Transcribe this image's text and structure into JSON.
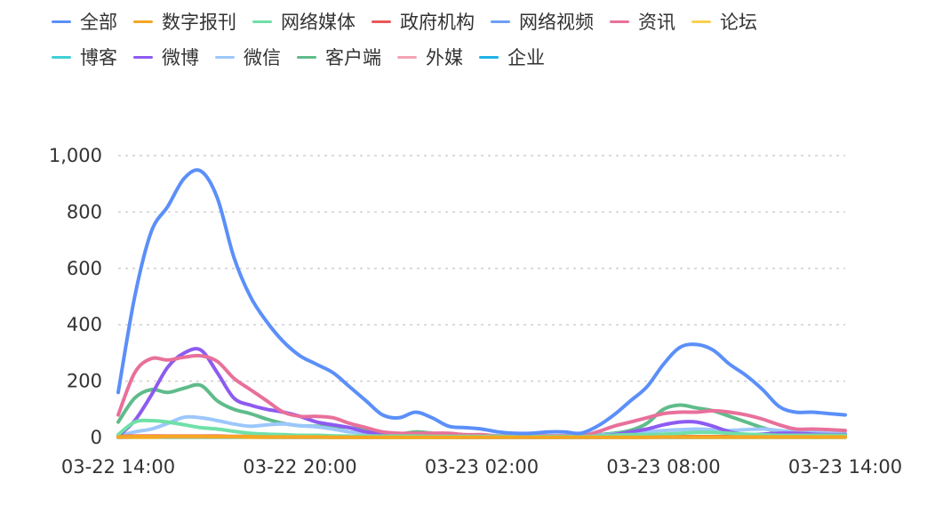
{
  "chart_data": {
    "type": "line",
    "x_labels": [
      "03-22 14:00",
      "03-22 20:00",
      "03-23 02:00",
      "03-23 08:00",
      "03-23 14:00"
    ],
    "y_ticks": [
      "0",
      "200",
      "400",
      "600",
      "800",
      "1,000"
    ],
    "ylim": [
      0,
      1000
    ],
    "grid": "horizontal dotted",
    "legend_position": "top",
    "series": [
      {
        "name": "全部",
        "color": "#5b8ff9",
        "values": [
          160,
          500,
          730,
          820,
          920,
          945,
          850,
          640,
          500,
          410,
          340,
          290,
          260,
          230,
          180,
          130,
          80,
          70,
          90,
          70,
          40,
          35,
          30,
          20,
          15,
          15,
          20,
          20,
          15,
          40,
          80,
          130,
          180,
          260,
          320,
          330,
          310,
          260,
          220,
          170,
          110,
          90,
          90,
          85,
          80
        ]
      },
      {
        "name": "数字报刊",
        "color": "#f6a623",
        "values": [
          2,
          3,
          3,
          4,
          4,
          4,
          3,
          3,
          3,
          2,
          2,
          2,
          2,
          1,
          1,
          1,
          1,
          1,
          1,
          1,
          1,
          1,
          1,
          1,
          1,
          1,
          1,
          1,
          1,
          1,
          1,
          1,
          1,
          2,
          2,
          2,
          2,
          2,
          2,
          2,
          2,
          2,
          2,
          2,
          2
        ]
      },
      {
        "name": "网络媒体",
        "color": "#6fe0a8",
        "values": [
          10,
          55,
          60,
          55,
          45,
          35,
          30,
          22,
          15,
          12,
          10,
          8,
          8,
          6,
          5,
          5,
          5,
          5,
          5,
          4,
          4,
          4,
          4,
          4,
          3,
          3,
          3,
          3,
          3,
          5,
          8,
          10,
          10,
          12,
          15,
          18,
          18,
          15,
          12,
          10,
          8,
          8,
          8,
          8,
          8
        ]
      },
      {
        "name": "政府机构",
        "color": "#e8575a",
        "values": [
          3,
          5,
          5,
          5,
          5,
          5,
          5,
          4,
          4,
          4,
          4,
          3,
          3,
          3,
          3,
          3,
          3,
          3,
          2,
          2,
          2,
          2,
          2,
          2,
          2,
          2,
          2,
          2,
          2,
          2,
          2,
          2,
          3,
          3,
          3,
          3,
          3,
          3,
          3,
          3,
          3,
          3,
          3,
          3,
          3
        ]
      },
      {
        "name": "网络视频",
        "color": "#6b9ff5",
        "values": [
          2,
          3,
          3,
          4,
          4,
          4,
          3,
          3,
          3,
          3,
          2,
          2,
          2,
          2,
          2,
          2,
          2,
          2,
          2,
          2,
          2,
          1,
          1,
          1,
          1,
          1,
          1,
          1,
          1,
          1,
          2,
          2,
          2,
          2,
          2,
          3,
          3,
          3,
          3,
          3,
          3,
          3,
          3,
          3,
          3
        ]
      },
      {
        "name": "资讯",
        "color": "#e8709b",
        "values": [
          80,
          230,
          280,
          275,
          285,
          290,
          270,
          210,
          170,
          130,
          90,
          75,
          75,
          70,
          50,
          35,
          20,
          15,
          15,
          15,
          15,
          10,
          10,
          5,
          5,
          5,
          5,
          5,
          5,
          20,
          40,
          55,
          70,
          85,
          90,
          90,
          95,
          90,
          80,
          65,
          45,
          30,
          30,
          28,
          25
        ]
      },
      {
        "name": "论坛",
        "color": "#f8d050",
        "values": [
          1,
          1,
          1,
          2,
          2,
          2,
          2,
          2,
          1,
          1,
          1,
          1,
          1,
          1,
          1,
          1,
          1,
          1,
          1,
          1,
          1,
          1,
          1,
          1,
          1,
          1,
          1,
          1,
          1,
          1,
          1,
          1,
          1,
          1,
          1,
          1,
          1,
          1,
          1,
          1,
          1,
          1,
          1,
          1,
          1
        ]
      },
      {
        "name": "博客",
        "color": "#3fd0d6",
        "values": [
          1,
          2,
          2,
          2,
          2,
          2,
          2,
          2,
          2,
          1,
          1,
          1,
          1,
          1,
          1,
          1,
          1,
          1,
          1,
          1,
          1,
          1,
          1,
          1,
          1,
          1,
          1,
          1,
          1,
          1,
          1,
          1,
          1,
          1,
          1,
          1,
          1,
          1,
          1,
          1,
          1,
          1,
          1,
          1,
          1
        ]
      },
      {
        "name": "微博",
        "color": "#8d5bf0",
        "values": [
          5,
          60,
          150,
          250,
          300,
          310,
          230,
          140,
          115,
          100,
          90,
          75,
          55,
          45,
          35,
          20,
          15,
          10,
          10,
          8,
          5,
          5,
          5,
          3,
          3,
          3,
          3,
          3,
          3,
          5,
          10,
          20,
          30,
          45,
          55,
          55,
          40,
          20,
          10,
          12,
          15,
          15,
          12,
          10,
          10
        ]
      },
      {
        "name": "微信",
        "color": "#9cc7fb",
        "values": [
          5,
          20,
          30,
          50,
          72,
          70,
          60,
          48,
          40,
          45,
          48,
          42,
          38,
          30,
          20,
          15,
          12,
          10,
          10,
          10,
          10,
          8,
          8,
          6,
          6,
          6,
          6,
          6,
          6,
          8,
          12,
          18,
          20,
          25,
          28,
          30,
          28,
          25,
          28,
          30,
          25,
          20,
          18,
          15,
          15
        ]
      },
      {
        "name": "客户端",
        "color": "#5fbc8a",
        "values": [
          55,
          140,
          170,
          160,
          175,
          185,
          130,
          100,
          85,
          65,
          50,
          42,
          40,
          38,
          35,
          25,
          15,
          12,
          20,
          15,
          10,
          8,
          8,
          6,
          6,
          6,
          6,
          6,
          6,
          10,
          15,
          25,
          50,
          100,
          115,
          105,
          95,
          75,
          55,
          35,
          20,
          15,
          15,
          12,
          12
        ]
      },
      {
        "name": "外媒",
        "color": "#f5a3b6",
        "values": [
          1,
          1,
          1,
          2,
          2,
          2,
          2,
          2,
          1,
          1,
          1,
          1,
          1,
          1,
          1,
          1,
          1,
          1,
          1,
          1,
          1,
          1,
          1,
          1,
          1,
          1,
          1,
          1,
          1,
          1,
          1,
          1,
          1,
          1,
          1,
          1,
          1,
          1,
          1,
          1,
          1,
          1,
          1,
          1,
          1
        ]
      },
      {
        "name": "企业",
        "color": "#1fb2e8",
        "values": [
          1,
          1,
          1,
          1,
          1,
          1,
          1,
          1,
          1,
          1,
          1,
          1,
          1,
          1,
          1,
          1,
          1,
          1,
          1,
          1,
          1,
          1,
          1,
          1,
          1,
          1,
          1,
          1,
          1,
          1,
          1,
          1,
          1,
          1,
          1,
          1,
          1,
          1,
          1,
          1,
          1,
          1,
          1,
          1,
          1
        ]
      }
    ]
  }
}
